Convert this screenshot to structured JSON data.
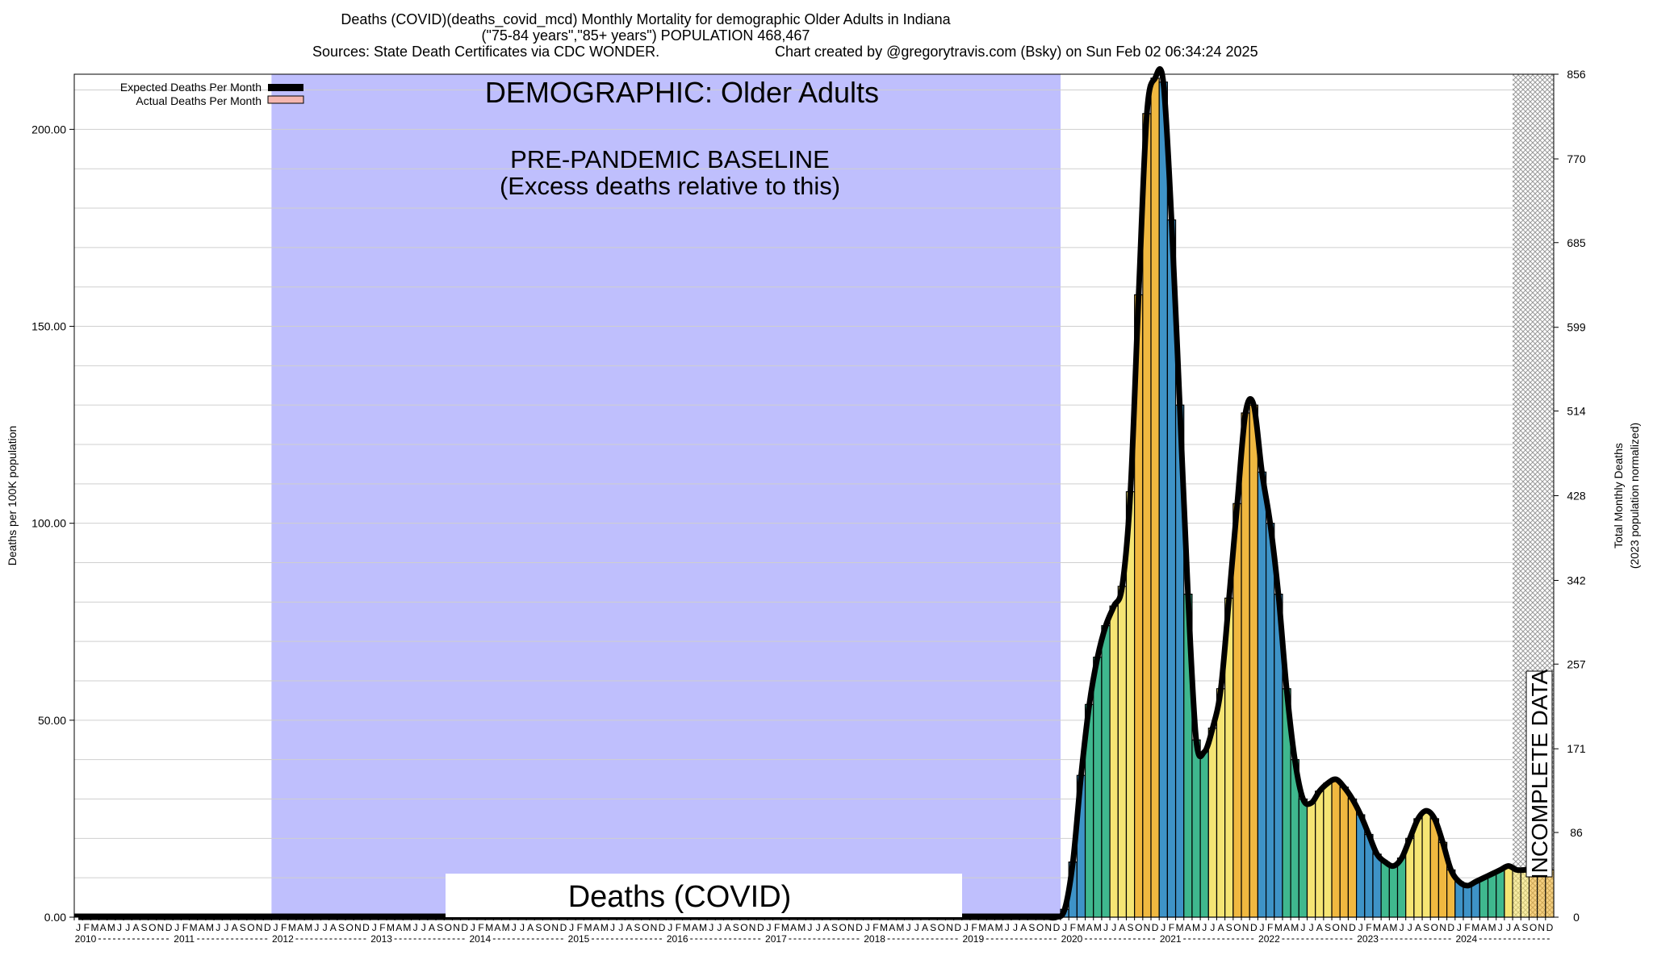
{
  "header": {
    "title_line1": "Deaths (COVID)(deaths_covid_mcd) Monthly Mortality for demographic Older Adults in Indiana",
    "title_line2": "(\"75-84 years\",\"85+ years\") POPULATION 468,467",
    "title_line3_left": "Sources: State Death Certificates via CDC WONDER.",
    "title_line3_right": "Chart created by @gregorytravis.com (Bsky) on Sun Feb 02 06:34:24 2025"
  },
  "annotations": {
    "demographic": "DEMOGRAPHIC: Older Adults",
    "baseline_line1": "PRE-PANDEMIC BASELINE",
    "baseline_line2": "(Excess deaths relative to this)",
    "incomplete": "INCOMPLETE DATA",
    "cause_label": "Deaths (COVID)"
  },
  "legend": {
    "expected": "Expected Deaths Per Month",
    "actual": "Actual Deaths Per Month"
  },
  "axes": {
    "ylabel_left": "Deaths per 100K population",
    "ylabel_right_line1": "Total Monthly Deaths",
    "ylabel_right_line2": "(2023 population normalized)",
    "left_ticks": [
      "0.00",
      "50.00",
      "100.00",
      "150.00",
      "200.00"
    ],
    "right_ticks": [
      "0",
      "86",
      "171",
      "257",
      "342",
      "428",
      "514",
      "599",
      "685",
      "770",
      "856"
    ],
    "month_letters": [
      "J",
      "F",
      "M",
      "A",
      "M",
      "J",
      "J",
      "A",
      "S",
      "O",
      "N",
      "D"
    ],
    "years": [
      "2010",
      "2011",
      "2012",
      "2013",
      "2014",
      "2015",
      "2016",
      "2017",
      "2018",
      "2019",
      "2020",
      "2021",
      "2022",
      "2023",
      "2024"
    ]
  },
  "colors": {
    "baseline_shade": "#bfbffd",
    "bar_palette": [
      "#3e93c7",
      "#3fb88e",
      "#f5e574",
      "#f0b840"
    ],
    "expected_line": "#000000",
    "actual_swatch": "#f4b6b0",
    "incomplete_hatch": "#888888"
  },
  "chart_data": {
    "type": "bar",
    "ylim": [
      0,
      214
    ],
    "right_axis_max": 856,
    "x_start": "2010-01",
    "x_end": "2024-12",
    "baseline_period": [
      "2012-01",
      "2019-12"
    ],
    "incomplete_from": "2024-08",
    "legend_position": "top-left",
    "grid": true,
    "series": [
      {
        "name": "Actual Deaths Per Month",
        "x": [
          "2020-01",
          "2020-02",
          "2020-03",
          "2020-04",
          "2020-05",
          "2020-06",
          "2020-07",
          "2020-08",
          "2020-09",
          "2020-10",
          "2020-11",
          "2020-12",
          "2021-01",
          "2021-02",
          "2021-03",
          "2021-04",
          "2021-05",
          "2021-06",
          "2021-07",
          "2021-08",
          "2021-09",
          "2021-10",
          "2021-11",
          "2021-12",
          "2022-01",
          "2022-02",
          "2022-03",
          "2022-04",
          "2022-05",
          "2022-06",
          "2022-07",
          "2022-08",
          "2022-09",
          "2022-10",
          "2022-11",
          "2022-12",
          "2023-01",
          "2023-02",
          "2023-03",
          "2023-04",
          "2023-05",
          "2023-06",
          "2023-07",
          "2023-08",
          "2023-09",
          "2023-10",
          "2023-11",
          "2023-12",
          "2024-01",
          "2024-02",
          "2024-03",
          "2024-04",
          "2024-05",
          "2024-06",
          "2024-07",
          "2024-08",
          "2024-09",
          "2024-10",
          "2024-11",
          "2024-12"
        ],
        "values": [
          2,
          14,
          36,
          54,
          66,
          74,
          79,
          84,
          108,
          158,
          204,
          213,
          212,
          177,
          130,
          82,
          45,
          42,
          48,
          58,
          81,
          105,
          128,
          130,
          113,
          100,
          82,
          58,
          40,
          30,
          29,
          32,
          34,
          35,
          33,
          30,
          26,
          21,
          16,
          14,
          13,
          15,
          20,
          25,
          27,
          25,
          19,
          12,
          9,
          8,
          9,
          10,
          11,
          12,
          13,
          12,
          12,
          12,
          12,
          12
        ]
      },
      {
        "name": "Expected Deaths Per Month",
        "values_note": "",
        "value": 0
      }
    ]
  }
}
